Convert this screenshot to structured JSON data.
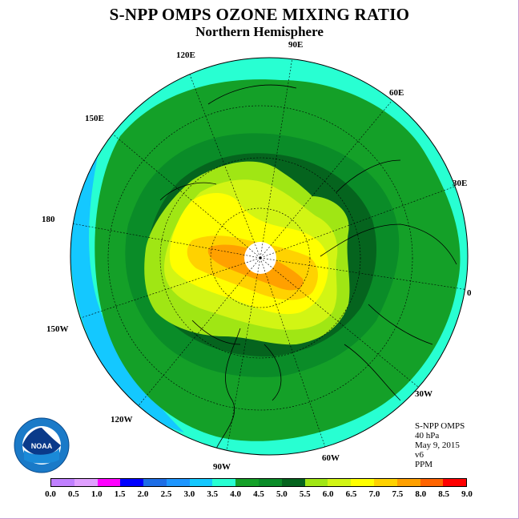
{
  "header": {
    "title": "S-NPP OMPS OZONE MIXING RATIO",
    "subtitle": "Northern Hemisphere"
  },
  "longitude_labels": {
    "lon_90e": "90E",
    "lon_60e": "60E",
    "lon_30e": "30E",
    "lon_0": "0",
    "lon_30w": "30W",
    "lon_60w": "60W",
    "lon_90w": "90W",
    "lon_120w": "120W",
    "lon_150w": "150W",
    "lon_180": "180",
    "lon_150e": "150E",
    "lon_120e": "120E"
  },
  "info_block": {
    "instrument": "S-NPP OMPS",
    "pressure_level": "40 hPa",
    "date": "May 9, 2015",
    "version": "v6",
    "units": "PPM"
  },
  "logo": {
    "text": "NOAA",
    "ring_text": "NATIONAL OCEANIC AND ATMOSPHERIC ADMINISTRATION · U.S. DEPARTMENT OF COMMERCE"
  },
  "colorbar": {
    "ticks": [
      "0.0",
      "0.5",
      "1.0",
      "1.5",
      "2.0",
      "2.5",
      "3.0",
      "3.5",
      "4.0",
      "4.5",
      "5.0",
      "5.5",
      "6.0",
      "6.5",
      "7.0",
      "7.5",
      "8.0",
      "8.5",
      "9.0"
    ],
    "colors": [
      "#c080ff",
      "#e0a0ff",
      "#ff00ff",
      "#0000ff",
      "#1e6ee6",
      "#1e96ff",
      "#14c8ff",
      "#28ffd2",
      "#14a028",
      "#0a8c28",
      "#05641e",
      "#a0e614",
      "#d2f514",
      "#ffff00",
      "#ffd200",
      "#ffa000",
      "#ff6400",
      "#ff0000",
      "#8c5a3c"
    ]
  }
}
